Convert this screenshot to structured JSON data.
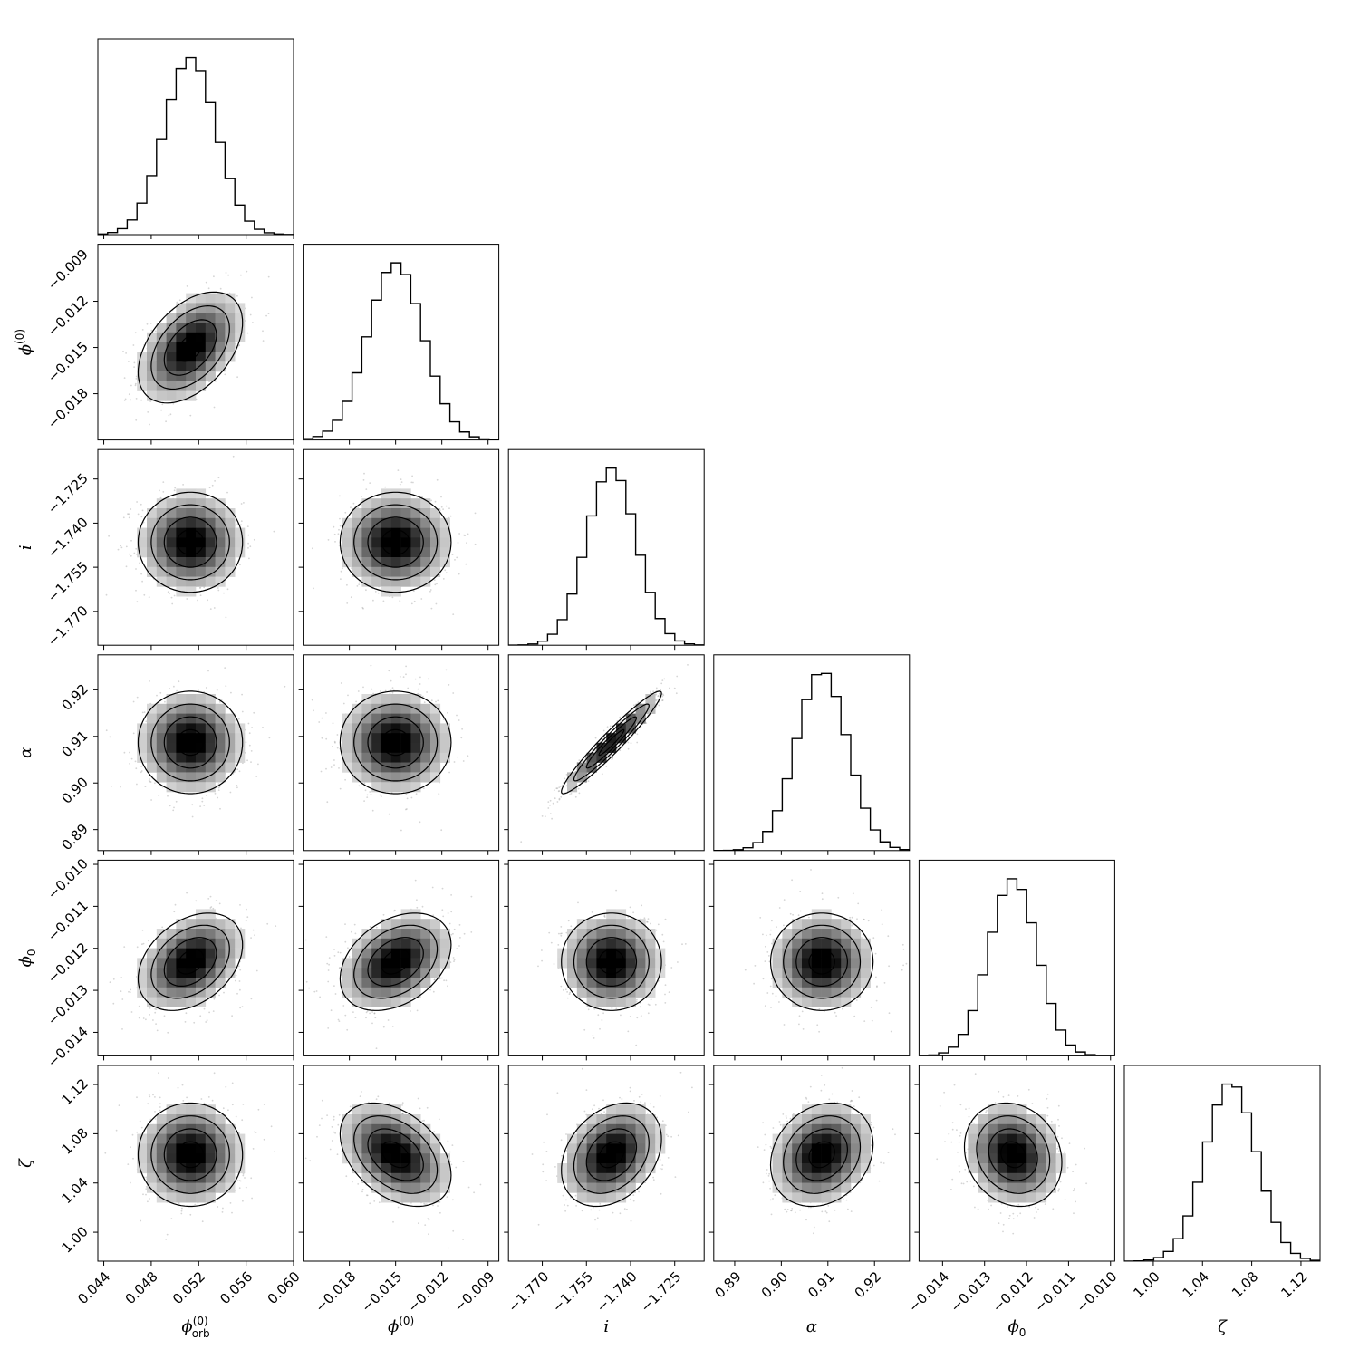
{
  "chart_data": {
    "type": "corner",
    "parameters": [
      {
        "key": "phi_orb",
        "symbol": "ϕ",
        "sub": "orb",
        "sup": "(0)",
        "range": [
          0.0435,
          0.06
        ],
        "ticks": [
          "0.044",
          "0.048",
          "0.052",
          "0.056",
          "0.060"
        ],
        "tick_values": [
          0.044,
          0.048,
          0.052,
          0.056,
          0.06
        ],
        "mean": 0.0513,
        "sd": 0.0022
      },
      {
        "key": "phi0_sup",
        "symbol": "ϕ",
        "sub": "",
        "sup": "(0)",
        "range": [
          -0.021,
          -0.0083
        ],
        "ticks": [
          "−0.018",
          "−0.015",
          "−0.012",
          "−0.009"
        ],
        "tick_values": [
          -0.018,
          -0.015,
          -0.012,
          -0.009
        ],
        "mean": -0.015,
        "sd": 0.0018
      },
      {
        "key": "i",
        "symbol": "i",
        "sub": "",
        "sup": "",
        "range": [
          -1.7815,
          -1.715
        ],
        "ticks": [
          "−1.770",
          "−1.755",
          "−1.740",
          "−1.725"
        ],
        "tick_values": [
          -1.77,
          -1.755,
          -1.74,
          -1.725
        ],
        "mean": -1.7465,
        "sd": 0.0085
      },
      {
        "key": "alpha",
        "symbol": "α",
        "sub": "",
        "sup": "",
        "range": [
          0.8855,
          0.9275
        ],
        "ticks": [
          "0.89",
          "0.90",
          "0.91",
          "0.92"
        ],
        "tick_values": [
          0.89,
          0.9,
          0.91,
          0.92
        ],
        "mean": 0.9087,
        "sd": 0.0055
      },
      {
        "key": "phi_0",
        "symbol": "ϕ",
        "sub": "0",
        "sup": "",
        "range": [
          -0.01456,
          -0.0099
        ],
        "ticks": [
          "−0.014",
          "−0.013",
          "−0.012",
          "−0.011",
          "−0.010"
        ],
        "tick_values": [
          -0.014,
          -0.013,
          -0.012,
          -0.011,
          -0.01
        ],
        "mean": -0.01232,
        "sd": 0.00058
      },
      {
        "key": "zeta",
        "symbol": "ζ",
        "sub": "",
        "sup": "",
        "range": [
          0.9765,
          1.1355
        ],
        "ticks": [
          "1.00",
          "1.04",
          "1.08",
          "1.12"
        ],
        "tick_values": [
          1.0,
          1.04,
          1.08,
          1.12
        ],
        "mean": 1.063,
        "sd": 0.021
      }
    ],
    "correlations": [
      [
        1.0,
        0.45,
        0.0,
        0.0,
        0.35,
        0.0
      ],
      [
        0.45,
        1.0,
        0.0,
        0.0,
        0.35,
        -0.4
      ],
      [
        0.0,
        0.0,
        1.0,
        0.96,
        0.0,
        0.3
      ],
      [
        0.0,
        0.0,
        0.96,
        1.0,
        0.0,
        0.2
      ],
      [
        0.35,
        0.35,
        0.0,
        0.0,
        1.0,
        -0.15
      ],
      [
        0.0,
        -0.4,
        0.3,
        0.2,
        -0.15,
        1.0
      ]
    ],
    "histogram_bins": 20,
    "contour_levels_sigma": [
      0.5,
      1.0,
      1.5,
      2.0
    ],
    "grid": false,
    "colors": {
      "line": "#000000",
      "density_max": "#000000",
      "density_min": "#ffffff",
      "scatter": "#888888"
    }
  }
}
